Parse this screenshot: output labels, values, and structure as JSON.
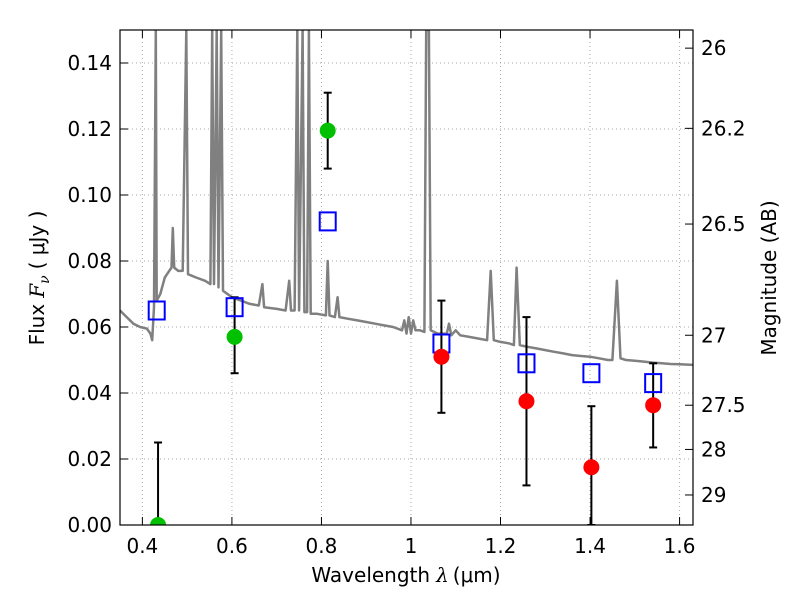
{
  "chart_data": {
    "type": "scatter",
    "xlabel": "Wavelength",
    "xlabel_symbol": "λ",
    "xlabel_unit": "(μm)",
    "ylabel_left_prefix": "Flux",
    "ylabel_left_symbol": "F",
    "ylabel_left_sub": "ν",
    "ylabel_left_unit": "( μJy )",
    "ylabel_right": "Magnitude (AB)",
    "xlim": [
      0.35,
      1.63
    ],
    "ylim": [
      0.0,
      0.15
    ],
    "grid": true,
    "x_ticks": [
      {
        "value": 0.4,
        "label": "0.4"
      },
      {
        "value": 0.6,
        "label": "0.6"
      },
      {
        "value": 0.8,
        "label": "0.8"
      },
      {
        "value": 1.0,
        "label": "1"
      },
      {
        "value": 1.2,
        "label": "1.2"
      },
      {
        "value": 1.4,
        "label": "1.4"
      },
      {
        "value": 1.6,
        "label": "1.6"
      }
    ],
    "y_ticks": [
      {
        "value": 0.0,
        "label": "0.00"
      },
      {
        "value": 0.02,
        "label": "0.02"
      },
      {
        "value": 0.04,
        "label": "0.04"
      },
      {
        "value": 0.06,
        "label": "0.06"
      },
      {
        "value": 0.08,
        "label": "0.08"
      },
      {
        "value": 0.1,
        "label": "0.10"
      },
      {
        "value": 0.12,
        "label": "0.12"
      },
      {
        "value": 0.14,
        "label": "0.14"
      }
    ],
    "right_ticks": [
      {
        "flux": 0.1445,
        "label": "26"
      },
      {
        "flux": 0.1202,
        "label": "26.2"
      },
      {
        "flux": 0.0912,
        "label": "26.5"
      },
      {
        "flux": 0.0575,
        "label": "27"
      },
      {
        "flux": 0.0363,
        "label": "27.5"
      },
      {
        "flux": 0.0229,
        "label": "28"
      },
      {
        "flux": 0.0091,
        "label": "29"
      }
    ],
    "colors": {
      "model": "#808080",
      "observed": "#ff0000",
      "observed_green": "#00c000",
      "model_box": "#0000ff",
      "errorbar": "#000000",
      "grid": "#aaaaaa"
    },
    "model_spectrum": [
      [
        0.35,
        0.065
      ],
      [
        0.365,
        0.063
      ],
      [
        0.38,
        0.061
      ],
      [
        0.395,
        0.06
      ],
      [
        0.41,
        0.0595
      ],
      [
        0.418,
        0.058
      ],
      [
        0.422,
        0.056
      ],
      [
        0.426,
        0.066
      ],
      [
        0.43,
        0.15
      ],
      [
        0.432,
        0.068
      ],
      [
        0.44,
        0.07
      ],
      [
        0.45,
        0.075
      ],
      [
        0.46,
        0.077
      ],
      [
        0.465,
        0.078
      ],
      [
        0.468,
        0.09
      ],
      [
        0.471,
        0.078
      ],
      [
        0.48,
        0.077
      ],
      [
        0.49,
        0.077
      ],
      [
        0.498,
        0.15
      ],
      [
        0.502,
        0.076
      ],
      [
        0.52,
        0.075
      ],
      [
        0.54,
        0.074
      ],
      [
        0.552,
        0.073
      ],
      [
        0.556,
        0.15
      ],
      [
        0.56,
        0.073
      ],
      [
        0.566,
        0.15
      ],
      [
        0.57,
        0.072
      ],
      [
        0.576,
        0.15
      ],
      [
        0.58,
        0.071
      ],
      [
        0.6,
        0.069
      ],
      [
        0.62,
        0.068
      ],
      [
        0.64,
        0.067
      ],
      [
        0.66,
        0.0665
      ],
      [
        0.668,
        0.073
      ],
      [
        0.672,
        0.066
      ],
      [
        0.7,
        0.0655
      ],
      [
        0.72,
        0.065
      ],
      [
        0.728,
        0.074
      ],
      [
        0.732,
        0.065
      ],
      [
        0.74,
        0.065
      ],
      [
        0.746,
        0.15
      ],
      [
        0.75,
        0.065
      ],
      [
        0.758,
        0.15
      ],
      [
        0.762,
        0.0645
      ],
      [
        0.768,
        0.0645
      ],
      [
        0.772,
        0.15
      ],
      [
        0.776,
        0.064
      ],
      [
        0.79,
        0.064
      ],
      [
        0.81,
        0.0635
      ],
      [
        0.814,
        0.08
      ],
      [
        0.818,
        0.0635
      ],
      [
        0.83,
        0.063
      ],
      [
        0.836,
        0.069
      ],
      [
        0.84,
        0.063
      ],
      [
        0.86,
        0.0625
      ],
      [
        0.88,
        0.062
      ],
      [
        0.9,
        0.0615
      ],
      [
        0.92,
        0.061
      ],
      [
        0.94,
        0.0605
      ],
      [
        0.96,
        0.06
      ],
      [
        0.98,
        0.059
      ],
      [
        0.985,
        0.062
      ],
      [
        0.99,
        0.058
      ],
      [
        0.995,
        0.063
      ],
      [
        1.0,
        0.058
      ],
      [
        1.005,
        0.062
      ],
      [
        1.01,
        0.059
      ],
      [
        1.02,
        0.059
      ],
      [
        1.03,
        0.0585
      ],
      [
        1.034,
        0.15
      ],
      [
        1.04,
        0.15
      ],
      [
        1.044,
        0.059
      ],
      [
        1.06,
        0.058
      ],
      [
        1.08,
        0.058
      ],
      [
        1.085,
        0.061
      ],
      [
        1.09,
        0.0575
      ],
      [
        1.1,
        0.059
      ],
      [
        1.11,
        0.0575
      ],
      [
        1.13,
        0.057
      ],
      [
        1.15,
        0.0565
      ],
      [
        1.17,
        0.056
      ],
      [
        1.178,
        0.077
      ],
      [
        1.185,
        0.056
      ],
      [
        1.2,
        0.0555
      ],
      [
        1.22,
        0.055
      ],
      [
        1.23,
        0.0545
      ],
      [
        1.236,
        0.078
      ],
      [
        1.243,
        0.0545
      ],
      [
        1.26,
        0.054
      ],
      [
        1.28,
        0.0535
      ],
      [
        1.3,
        0.053
      ],
      [
        1.32,
        0.0525
      ],
      [
        1.34,
        0.052
      ],
      [
        1.36,
        0.0515
      ],
      [
        1.38,
        0.0512
      ],
      [
        1.4,
        0.051
      ],
      [
        1.42,
        0.0505
      ],
      [
        1.44,
        0.05
      ],
      [
        1.45,
        0.05
      ],
      [
        1.46,
        0.074
      ],
      [
        1.468,
        0.0505
      ],
      [
        1.48,
        0.05
      ],
      [
        1.5,
        0.0498
      ],
      [
        1.52,
        0.0495
      ],
      [
        1.54,
        0.0492
      ],
      [
        1.56,
        0.049
      ],
      [
        1.58,
        0.0488
      ],
      [
        1.6,
        0.0487
      ],
      [
        1.63,
        0.0485
      ]
    ],
    "model_boxes": [
      {
        "x": 0.432,
        "y": 0.065
      },
      {
        "x": 0.606,
        "y": 0.066
      },
      {
        "x": 0.814,
        "y": 0.092
      },
      {
        "x": 1.068,
        "y": 0.055
      },
      {
        "x": 1.258,
        "y": 0.049
      },
      {
        "x": 1.403,
        "y": 0.046
      },
      {
        "x": 1.541,
        "y": 0.043
      }
    ],
    "observations": [
      {
        "x": 0.435,
        "y": 0.0,
        "yerr_low": 0.0,
        "yerr_high": 0.025,
        "color": "green"
      },
      {
        "x": 0.606,
        "y": 0.057,
        "yerr_low": 0.046,
        "yerr_high": 0.069,
        "color": "green"
      },
      {
        "x": 0.814,
        "y": 0.1195,
        "yerr_low": 0.108,
        "yerr_high": 0.131,
        "color": "green"
      },
      {
        "x": 1.068,
        "y": 0.051,
        "yerr_low": 0.034,
        "yerr_high": 0.068,
        "color": "red"
      },
      {
        "x": 1.258,
        "y": 0.0375,
        "yerr_low": 0.012,
        "yerr_high": 0.063,
        "color": "red"
      },
      {
        "x": 1.403,
        "y": 0.0175,
        "yerr_low": 0.0,
        "yerr_high": 0.036,
        "color": "red"
      },
      {
        "x": 1.541,
        "y": 0.0363,
        "yerr_low": 0.0235,
        "yerr_high": 0.049,
        "color": "red"
      }
    ]
  }
}
